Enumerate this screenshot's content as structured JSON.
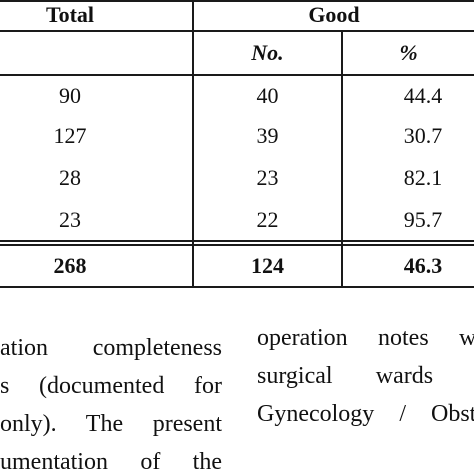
{
  "table": {
    "headers": {
      "total": "Total",
      "good": "Good"
    },
    "subheaders": {
      "no": "No.",
      "pct": "%"
    },
    "rows": [
      {
        "total": "90",
        "no": "40",
        "pct": "44.4"
      },
      {
        "total": "127",
        "no": "39",
        "pct": "30.7"
      },
      {
        "total": "28",
        "no": "23",
        "pct": "82.1"
      },
      {
        "total": "23",
        "no": "22",
        "pct": "95.7"
      }
    ],
    "totals": {
      "total": "268",
      "no": "124",
      "pct": "46.3"
    }
  },
  "text": {
    "left_col": [
      "ation completeness",
      "s (documented for",
      "only). The present",
      "umentation of the"
    ],
    "right_col": [
      "operation notes wa",
      "surgical wards a",
      "Gynecology / Obste"
    ]
  }
}
